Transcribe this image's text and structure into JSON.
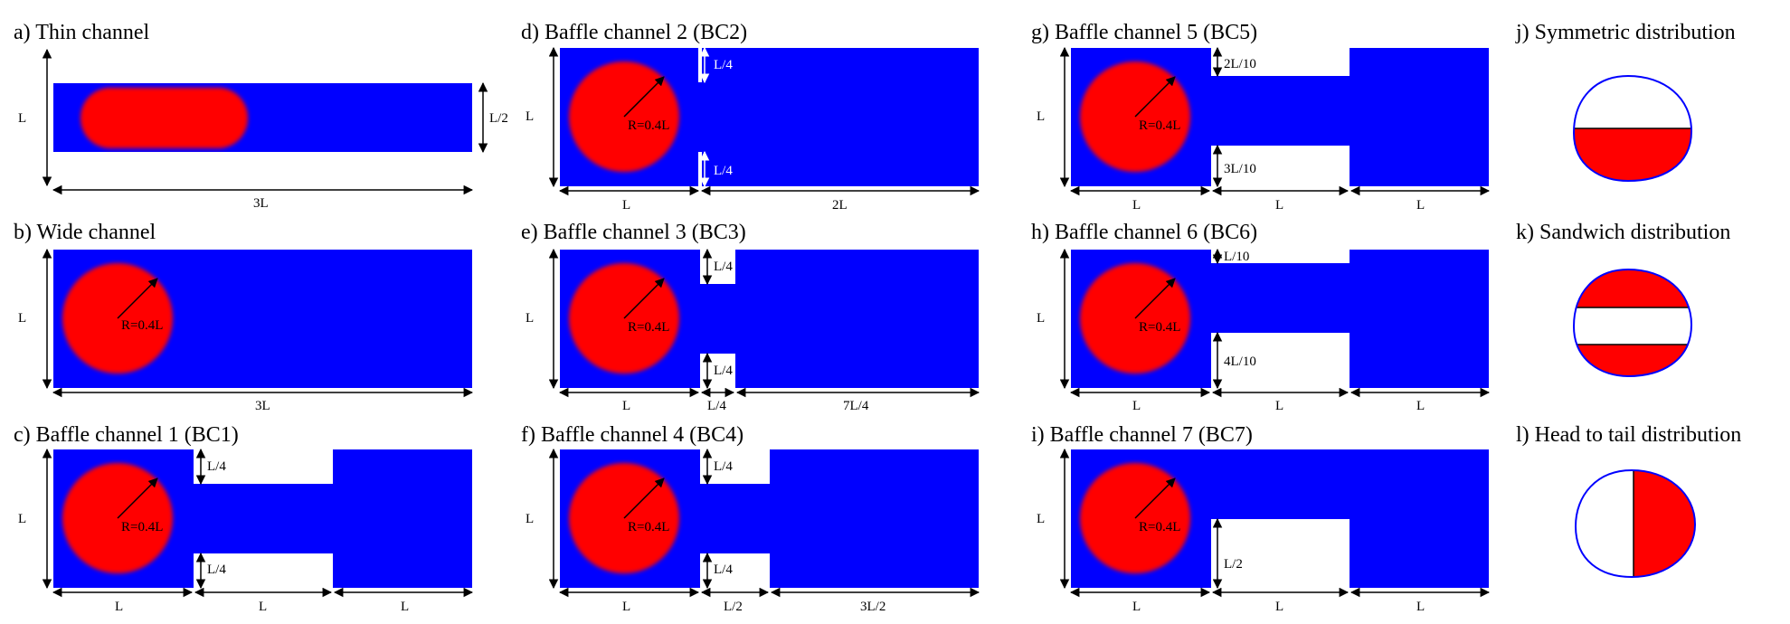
{
  "colors": {
    "channel": "#0000ff",
    "droplet": "#ff0000",
    "wall": "#ffffff",
    "line": "#000000"
  },
  "panels": {
    "a": {
      "title": "a) Thin channel",
      "height": "L",
      "inner_height": "L/2",
      "length": "3L"
    },
    "b": {
      "title": "b)  Wide channel",
      "height": "L",
      "radius": "R=0.4L",
      "length": "3L"
    },
    "c": {
      "title": "c) Baffle channel 1 (BC1)",
      "height": "L",
      "radius": "R=0.4L",
      "top_gap": "L/4",
      "bottom_gap": "L/4",
      "seg1": "L",
      "seg2": "L",
      "seg3": "L"
    },
    "d": {
      "title": "d)  Baffle channel 2 (BC2)",
      "height": "L",
      "radius": "R=0.4L",
      "top_gap": "L/4",
      "bottom_gap": "L/4",
      "seg1": "L",
      "seg2": "2L"
    },
    "e": {
      "title": "e)  Baffle channel 3 (BC3)",
      "height": "L",
      "radius": "R=0.4L",
      "top_gap": "L/4",
      "bottom_gap": "L/4",
      "seg1": "L",
      "seg2": "L/4",
      "seg3": "7L/4"
    },
    "f": {
      "title": "f)  Baffle channel 4 (BC4)",
      "height": "L",
      "radius": "R=0.4L",
      "top_gap": "L/4",
      "bottom_gap": "L/4",
      "seg1": "L",
      "seg2": "L/2",
      "seg3": "3L/2"
    },
    "g": {
      "title": "g)  Baffle channel 5 (BC5)",
      "height": "L",
      "radius": "R=0.4L",
      "top_gap": "2L/10",
      "bottom_gap": "3L/10",
      "seg1": "L",
      "seg2": "L",
      "seg3": "L"
    },
    "h": {
      "title": "h) Baffle channel 6 (BC6)",
      "height": "L",
      "radius": "R=0.4L",
      "top_gap": "L/10",
      "bottom_gap": "4L/10",
      "seg1": "L",
      "seg2": "L",
      "seg3": "L"
    },
    "i": {
      "title": "i) Baffle channel 7 (BC7)",
      "height": "L",
      "radius": "R=0.4L",
      "bottom_gap": "L/2",
      "seg1": "L",
      "seg2": "L",
      "seg3": "L"
    },
    "j": {
      "title": "j)  Symmetric distribution"
    },
    "k": {
      "title": "k)  Sandwich distribution"
    },
    "l": {
      "title": "l)  Head to tail distribution"
    }
  }
}
